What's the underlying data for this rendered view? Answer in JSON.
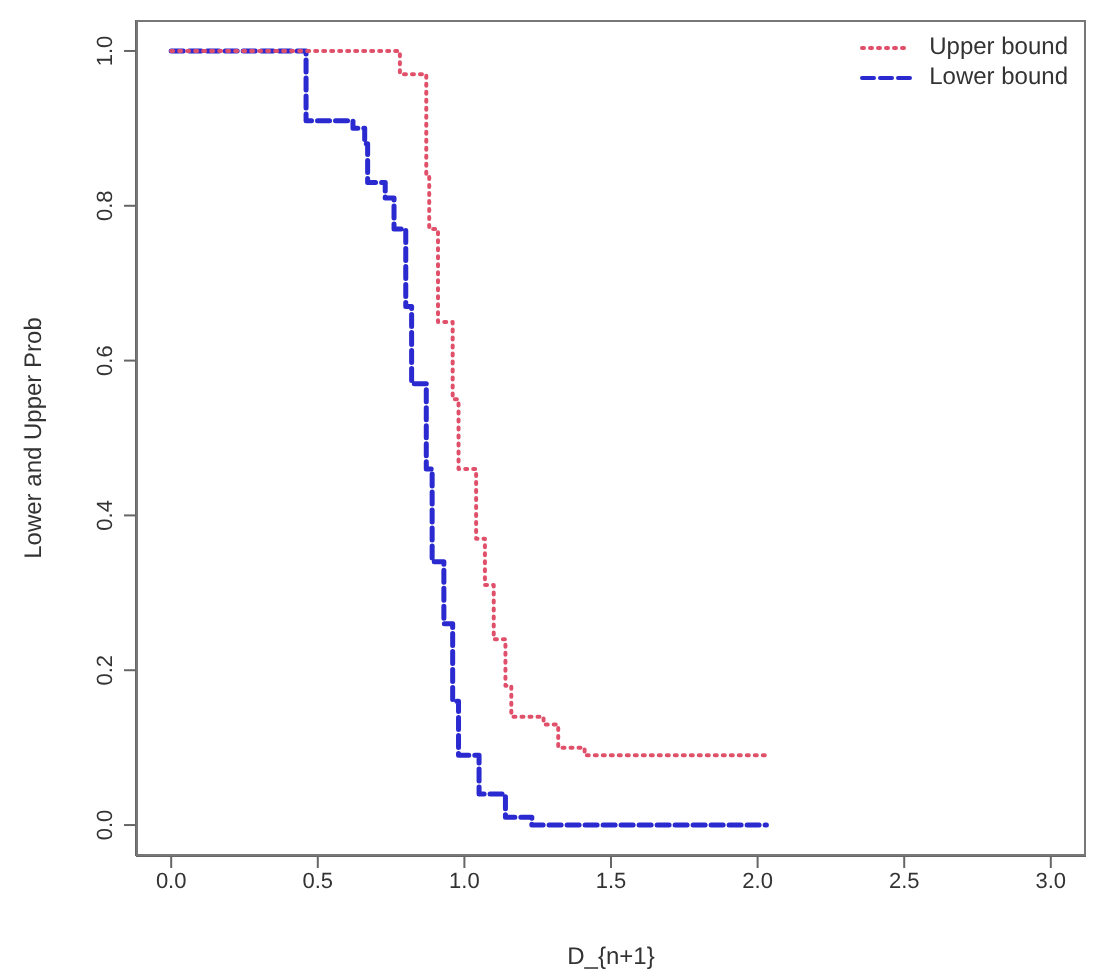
{
  "chart_data": {
    "type": "step",
    "xlabel": "D_{n+1}",
    "ylabel": "Lower and Upper Prob",
    "xlim": [
      -0.12,
      3.12
    ],
    "ylim": [
      -0.04,
      1.04
    ],
    "xticks": [
      {
        "value": 0,
        "label": "0.0"
      },
      {
        "value": 0.5,
        "label": "0.5"
      },
      {
        "value": 1,
        "label": "1.0"
      },
      {
        "value": 1.5,
        "label": "1.5"
      },
      {
        "value": 2,
        "label": "2.0"
      },
      {
        "value": 2.5,
        "label": "2.5"
      },
      {
        "value": 3,
        "label": "3.0"
      }
    ],
    "yticks": [
      {
        "value": 0,
        "label": "0.0"
      },
      {
        "value": 0.2,
        "label": "0.2"
      },
      {
        "value": 0.4,
        "label": "0.4"
      },
      {
        "value": 0.6,
        "label": "0.6"
      },
      {
        "value": 0.8,
        "label": "0.8"
      },
      {
        "value": 1,
        "label": "1.0"
      }
    ],
    "grid": false,
    "legend": "top right",
    "marker": "none",
    "series": [
      {
        "name": "Upper bound",
        "color": "#e0506a",
        "line_style": "dotted",
        "x": [
          0,
          0.62,
          0.78,
          0.87,
          0.88,
          0.91,
          0.96,
          0.98,
          1.04,
          1.07,
          1.1,
          1.14,
          1.16,
          1.27,
          1.32,
          1.41,
          2.03
        ],
        "values": [
          1,
          1,
          0.97,
          0.84,
          0.77,
          0.65,
          0.55,
          0.46,
          0.37,
          0.31,
          0.24,
          0.18,
          0.14,
          0.13,
          0.1,
          0.09,
          0.09
        ]
      },
      {
        "name": "Lower bound",
        "color": "#2a2ad0",
        "line_style": "dashed",
        "x": [
          0,
          0.46,
          0.62,
          0.66,
          0.67,
          0.73,
          0.76,
          0.8,
          0.82,
          0.87,
          0.89,
          0.93,
          0.96,
          0.98,
          1.05,
          1.14,
          1.23,
          2.03
        ],
        "values": [
          1,
          0.91,
          0.9,
          0.88,
          0.83,
          0.81,
          0.77,
          0.67,
          0.57,
          0.46,
          0.34,
          0.26,
          0.16,
          0.09,
          0.04,
          0.01,
          0,
          0
        ]
      }
    ]
  }
}
